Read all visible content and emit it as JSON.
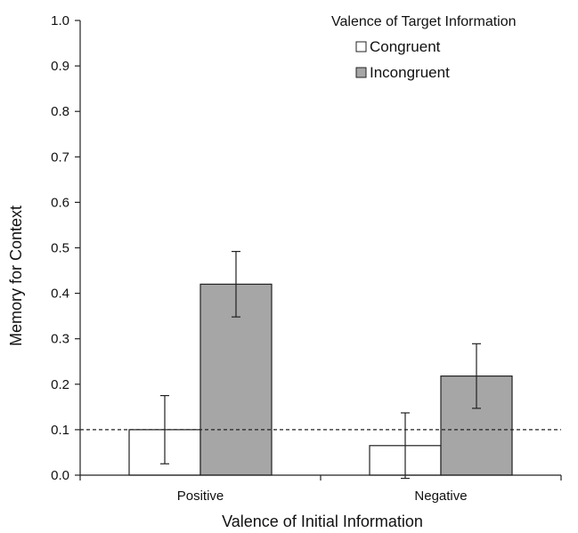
{
  "chart_data": {
    "type": "bar",
    "categories": [
      "Positive",
      "Negative"
    ],
    "series": [
      {
        "name": "Congruent",
        "values": [
          0.1,
          0.065
        ],
        "errors": [
          0.075,
          0.072
        ],
        "color": "#ffffff"
      },
      {
        "name": "Incongruent",
        "values": [
          0.42,
          0.218
        ],
        "errors": [
          0.072,
          0.071
        ],
        "color": "#a6a6a6"
      }
    ],
    "reference_line": {
      "value": 0.1,
      "style": "dashed"
    },
    "xlabel": "Valence of Initial Information",
    "ylabel": "Memory for Context",
    "ylim": [
      0.0,
      1.0
    ],
    "yticks": [
      "0.0",
      "0.1",
      "0.2",
      "0.3",
      "0.4",
      "0.5",
      "0.6",
      "0.7",
      "0.8",
      "0.9",
      "1.0"
    ],
    "legend_title": "Valence of Target Information",
    "legend_position": "top-right",
    "grid": false
  }
}
